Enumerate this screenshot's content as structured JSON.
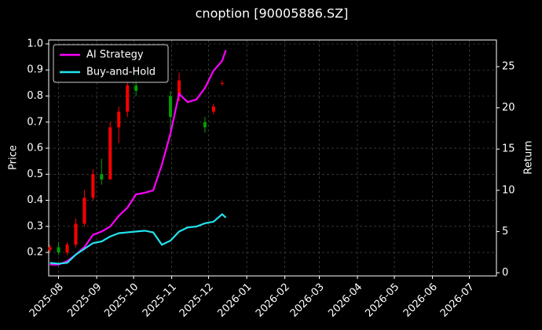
{
  "chart_data": {
    "type": "candlestick",
    "title": "cnoption [90005886.SZ]",
    "ylabel": "Price",
    "y2label": "Return",
    "xlim": [
      "2025-07-24",
      "2026-07-23"
    ],
    "xticks": [
      "2025-08",
      "2025-09",
      "2025-10",
      "2025-11",
      "2025-12",
      "2026-01",
      "2026-02",
      "2026-03",
      "2026-04",
      "2026-05",
      "2026-06",
      "2026-07"
    ],
    "ylim": [
      0.11,
      1.015
    ],
    "yticks": [
      0.2,
      0.3,
      0.4,
      0.5,
      0.6,
      0.7,
      0.8,
      0.9,
      {
        "value": 1,
        "label": "1.0"
      }
    ],
    "y2lim": [
      -0.38,
      28.23
    ],
    "y2ticks": [
      0,
      5,
      10,
      15,
      20,
      25
    ],
    "grid": true,
    "legend": "upper-left",
    "up_color": "#ff0000",
    "down_color": "#00a000",
    "candles": {
      "x": [
        "2025-07-25",
        "2025-08-01",
        "2025-08-08",
        "2025-08-15",
        "2025-08-22",
        "2025-08-29",
        "2025-09-05",
        "2025-09-12",
        "2025-09-19",
        "2025-09-26",
        "2025-10-03",
        "2025-10-31",
        "2025-11-07",
        "2025-11-28",
        "2025-12-05",
        "2025-12-12"
      ],
      "open": [
        0.21,
        0.22,
        0.2,
        0.23,
        0.31,
        0.41,
        0.5,
        0.48,
        0.68,
        0.74,
        0.84,
        0.8,
        0.8,
        0.7,
        0.74,
        0.85
      ],
      "high": [
        0.23,
        0.24,
        0.24,
        0.33,
        0.44,
        0.52,
        0.56,
        0.7,
        0.76,
        0.86,
        0.9,
        0.82,
        0.89,
        0.72,
        0.77,
        0.86
      ],
      "low": [
        0.2,
        0.19,
        0.19,
        0.22,
        0.3,
        0.4,
        0.46,
        0.48,
        0.62,
        0.72,
        0.8,
        0.64,
        0.78,
        0.66,
        0.73,
        0.84
      ],
      "close": [
        0.22,
        0.2,
        0.23,
        0.31,
        0.41,
        0.5,
        0.48,
        0.68,
        0.74,
        0.84,
        0.82,
        0.72,
        0.86,
        0.68,
        0.76,
        0.85
      ]
    },
    "x": [
      "2025-07-25",
      "2025-08-01",
      "2025-08-08",
      "2025-08-15",
      "2025-08-22",
      "2025-08-29",
      "2025-09-05",
      "2025-09-12",
      "2025-09-19",
      "2025-09-26",
      "2025-10-03",
      "2025-10-10",
      "2025-10-17",
      "2025-10-24",
      "2025-10-31",
      "2025-11-07",
      "2025-11-14",
      "2025-11-21",
      "2025-11-28",
      "2025-12-05",
      "2025-12-12",
      "2025-12-15"
    ],
    "series": [
      {
        "name": "AI Strategy",
        "color": "#ff00ff",
        "axis": "y2",
        "values": [
          1.0,
          1.0,
          1.4,
          2.2,
          3.1,
          4.6,
          5.0,
          5.6,
          6.9,
          7.9,
          9.5,
          9.7,
          10.0,
          13.1,
          16.9,
          21.7,
          20.7,
          21.0,
          22.4,
          24.5,
          25.7,
          27.0
        ]
      },
      {
        "name": "Buy-and-Hold",
        "color": "#22e5f0",
        "axis": "y2",
        "values": [
          1.2,
          1.1,
          1.2,
          2.2,
          2.9,
          3.6,
          3.8,
          4.4,
          4.8,
          4.9,
          5.0,
          5.1,
          4.9,
          3.4,
          3.9,
          5.0,
          5.5,
          5.6,
          6.0,
          6.2,
          7.1,
          6.7
        ]
      }
    ]
  }
}
